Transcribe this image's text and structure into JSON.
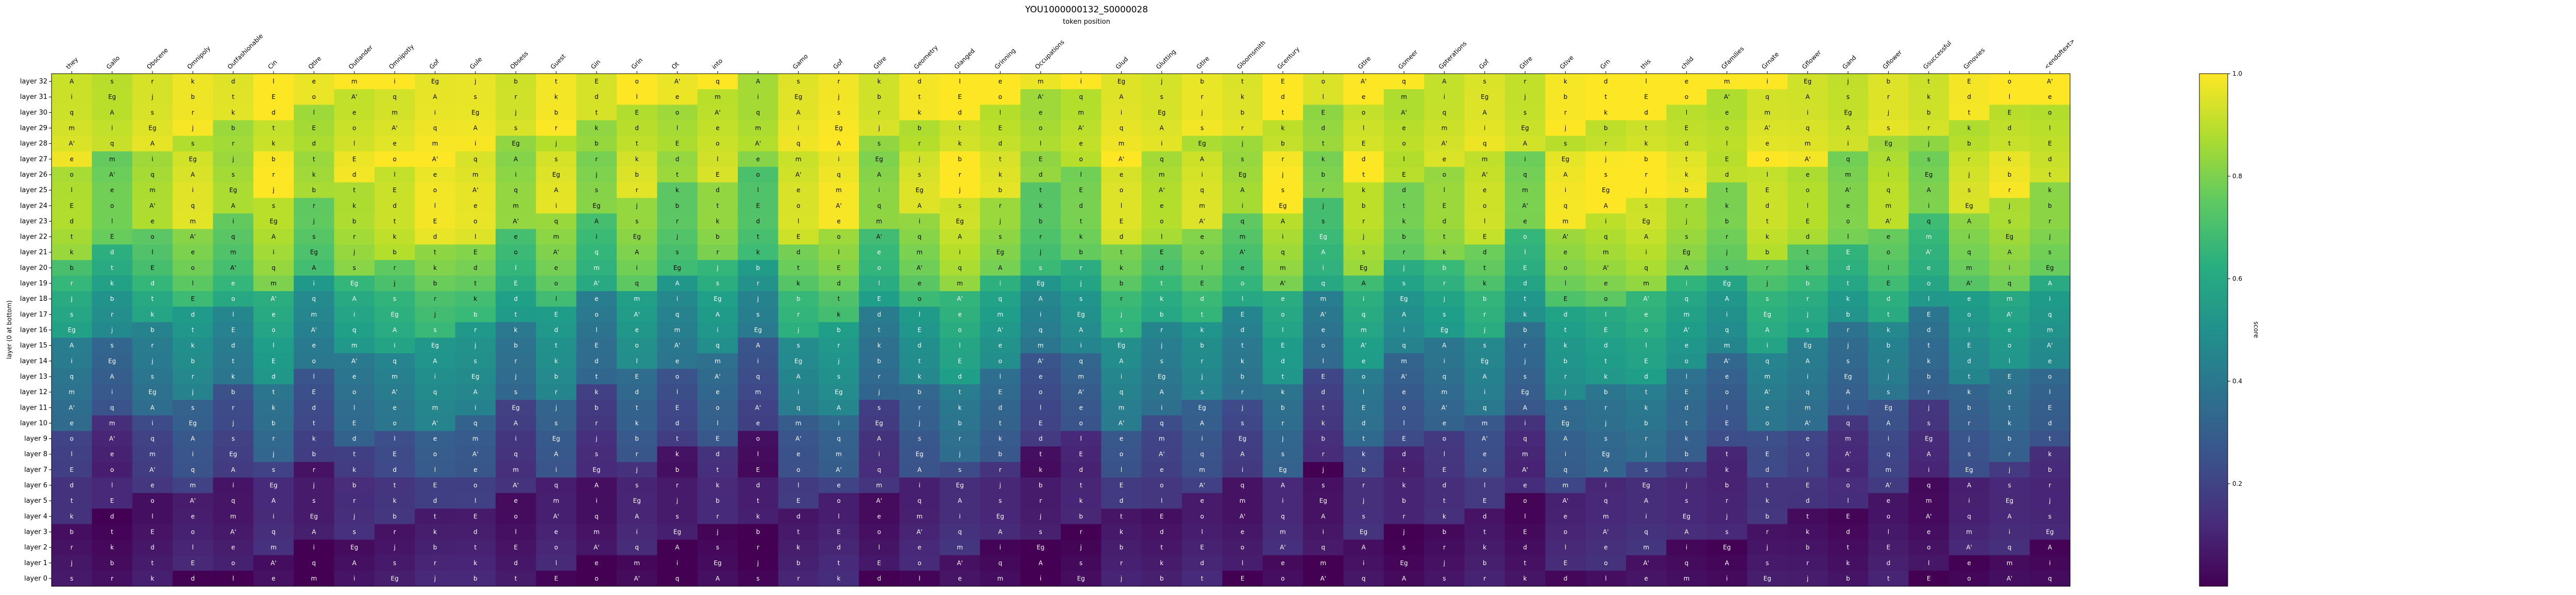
{
  "chart_data": {
    "type": "heatmap",
    "title": "YOU1000000132_S0000028",
    "subtitle": "token position",
    "ylabel": "layer (0 at bottom)",
    "colorbar_label": "score",
    "colorbar_ticks": [
      0.2,
      0.4,
      0.6,
      0.8,
      1.0
    ],
    "value_range": [
      0.0,
      1.0
    ],
    "colormap": "viridis",
    "tokens": [
      "they",
      "Gallo",
      "Obscene",
      "Omnipoly",
      "Outfashionable",
      "Cin",
      "Qtlre",
      "Outlander",
      "Omnipotly",
      "Gof",
      "Gule",
      "Obsess",
      "Guest",
      "Gin",
      "Grin",
      "Ot",
      "into",
      "",
      "Gamo",
      "Gof",
      "Gtlre",
      "Geometry",
      "Glanged",
      "Grinning",
      "Occupations",
      "",
      "Glud",
      "Glutting",
      "Gtlre",
      "Gloomsmith",
      "Gcentury",
      "",
      "Gtlre",
      "Gsmeer",
      "Gpterations",
      "Gof",
      "Gtlre",
      "Gtive",
      "Grn",
      "this",
      "child",
      "Gfamilies",
      "Grnate",
      "Gflower",
      "Gand",
      "Gflower",
      "Gsuccessful",
      "Gmovies",
      "",
      "<endoftext>"
    ],
    "layers": [
      "layer 32",
      "layer 31",
      "layer 30",
      "layer 29",
      "layer 28",
      "layer 27",
      "layer 26",
      "layer 25",
      "layer 24",
      "layer 23",
      "layer 22",
      "layer 21",
      "layer 20",
      "layer 19",
      "layer 18",
      "layer 17",
      "layer 16",
      "layer 15",
      "layer 14",
      "layer 13",
      "layer 12",
      "layer 11",
      "layer 10",
      "layer 9",
      "layer 8",
      "layer 7",
      "layer 6",
      "layer 5",
      "layer 4",
      "layer 3",
      "layer 2",
      "layer 1",
      "layer 0"
    ],
    "layer_profile": [
      0.97,
      0.95,
      0.93,
      0.92,
      0.91,
      0.9,
      0.89,
      0.88,
      0.86,
      0.84,
      0.8,
      0.76,
      0.72,
      0.66,
      0.58,
      0.54,
      0.5,
      0.45,
      0.42,
      0.38,
      0.34,
      0.3,
      0.27,
      0.22,
      0.19,
      0.16,
      0.12,
      0.1,
      0.08,
      0.07,
      0.06,
      0.05,
      0.04
    ],
    "token_offset": [
      0.02,
      -0.05,
      0.0,
      0.04,
      -0.02,
      0.06,
      -0.04,
      0.03,
      0.05,
      0.08,
      0.06,
      -0.03,
      0.04,
      -0.06,
      0.02,
      -0.05,
      0.0,
      -0.08,
      0.05,
      0.07,
      -0.04,
      0.03,
      0.08,
      0.02,
      -0.06,
      -0.03,
      0.06,
      0.01,
      0.04,
      -0.02,
      0.06,
      -0.07,
      0.05,
      -0.03,
      0.0,
      0.04,
      -0.05,
      0.06,
      0.07,
      0.08,
      0.03,
      -0.02,
      0.05,
      0.02,
      -0.04,
      0.01,
      -0.06,
      0.02,
      0.04,
      0.0
    ],
    "cell_glyphs": [
      "A",
      "e",
      "t",
      "s",
      "m",
      "E",
      "r",
      "i",
      "o",
      "k",
      "Eg",
      "A'",
      "d",
      "j",
      "q",
      "l",
      "b"
    ]
  }
}
